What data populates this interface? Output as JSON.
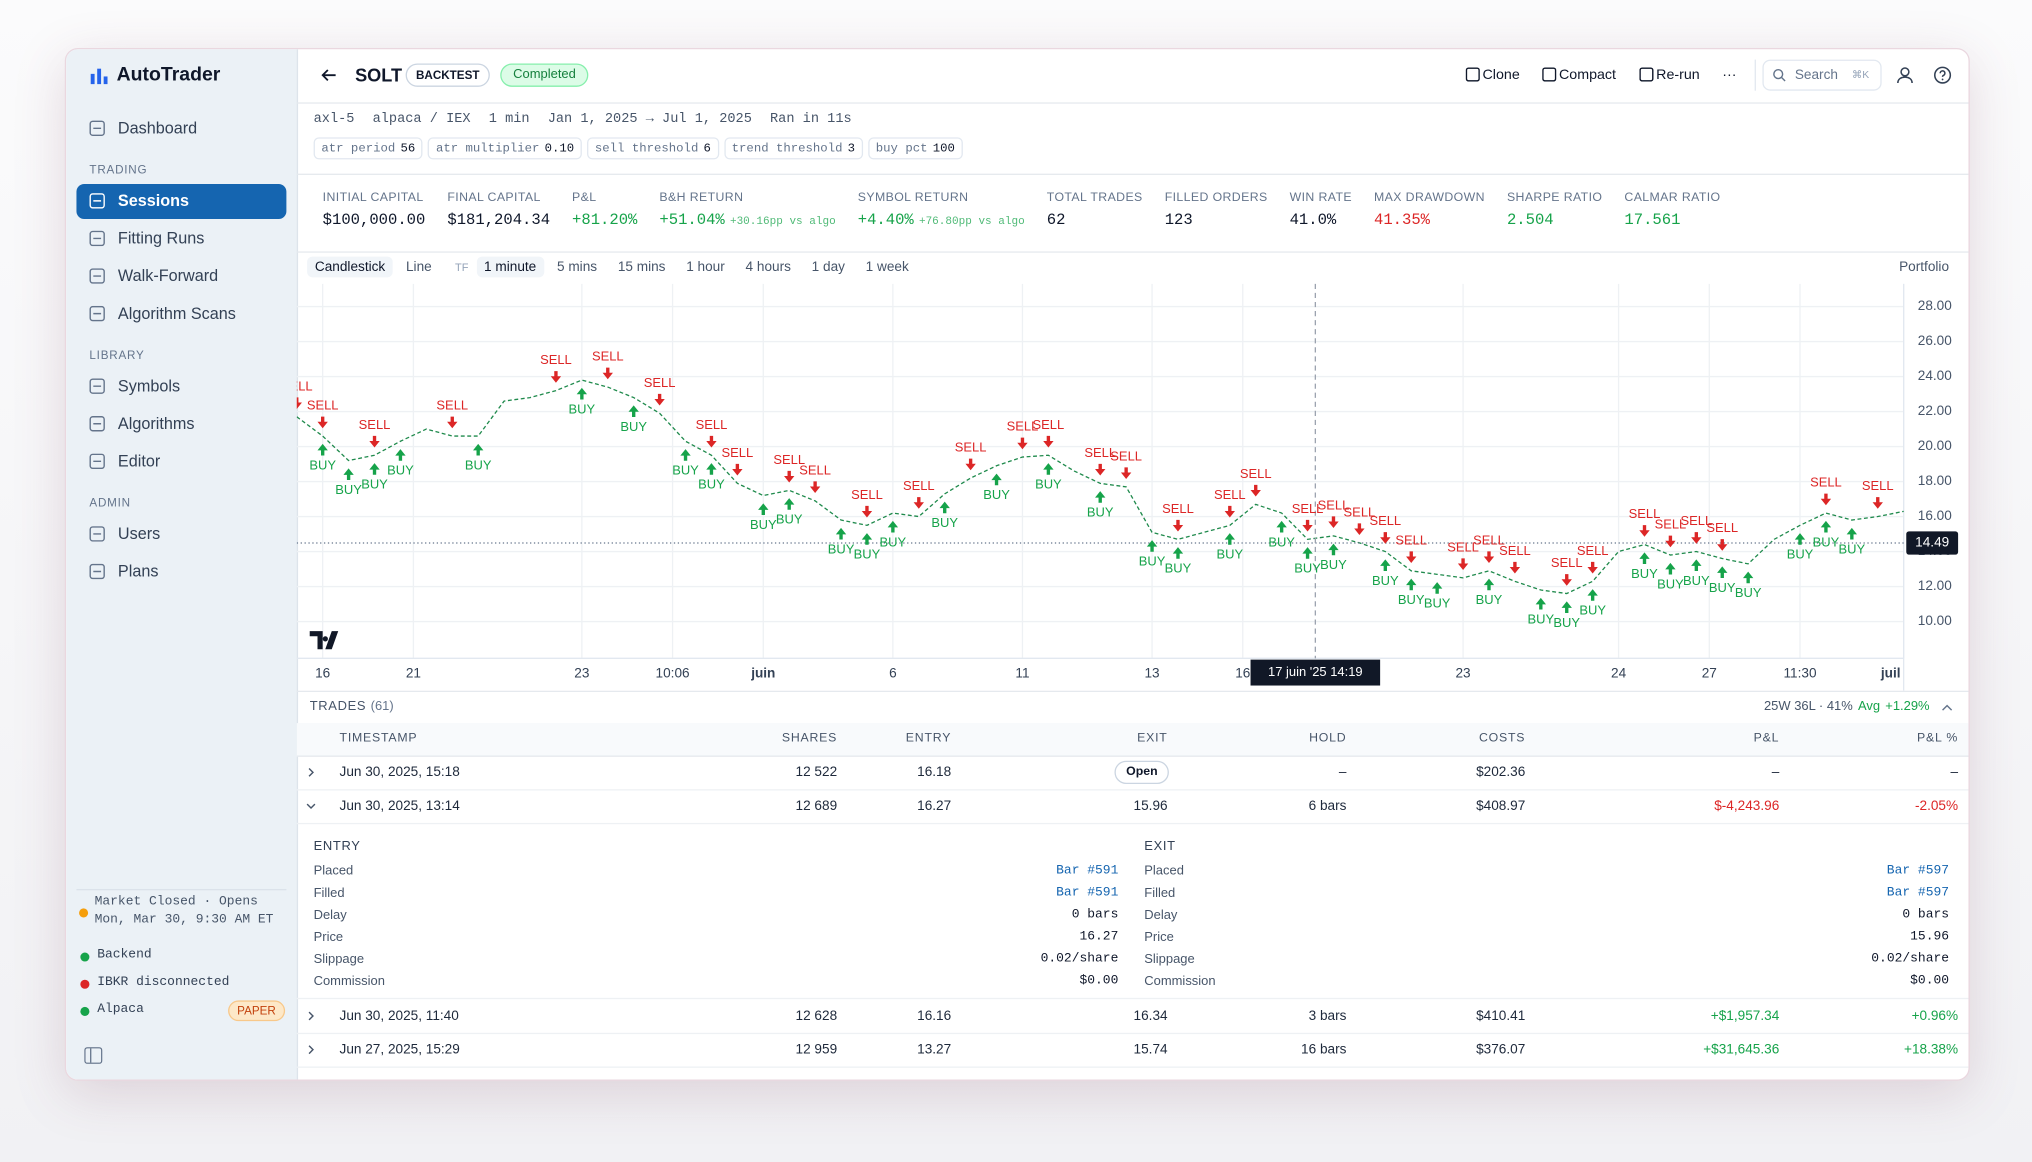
{
  "sidebar": {
    "brand": "AutoTrader",
    "top": [
      {
        "label": "Dashboard"
      }
    ],
    "groups": [
      {
        "title": "TRADING",
        "items": [
          {
            "label": "Sessions",
            "active": true
          },
          {
            "label": "Fitting Runs"
          },
          {
            "label": "Walk-Forward"
          },
          {
            "label": "Algorithm Scans"
          }
        ]
      },
      {
        "title": "LIBRARY",
        "items": [
          {
            "label": "Symbols"
          },
          {
            "label": "Algorithms"
          },
          {
            "label": "Editor"
          }
        ]
      },
      {
        "title": "ADMIN",
        "items": [
          {
            "label": "Users"
          },
          {
            "label": "Plans"
          }
        ]
      }
    ],
    "market": [
      "Market Closed · Opens",
      "Mon, Mar 30, 9:30 AM ET"
    ],
    "market_color": "#f59e0b",
    "status": [
      {
        "label": "Backend",
        "color": "#16a34a"
      },
      {
        "label": "IBKR disconnected",
        "color": "#dc2626"
      },
      {
        "label": "Alpaca",
        "color": "#16a34a",
        "badge": "PAPER"
      }
    ]
  },
  "header": {
    "symbol": "SOLT",
    "mode": "BACKTEST",
    "status": "Completed",
    "actions": [
      "Clone",
      "Compact",
      "Re-run",
      "···"
    ],
    "search": "Search",
    "shortcut": "⌘K"
  },
  "run_info": [
    "axl-5",
    "alpaca / IEX",
    "1 min",
    "Jan 1, 2025 → Jul 1, 2025",
    "Ran in 11s"
  ],
  "params": [
    {
      "name": "atr period",
      "value": "56"
    },
    {
      "name": "atr multiplier",
      "value": "0.10"
    },
    {
      "name": "sell threshold",
      "value": "6"
    },
    {
      "name": "trend threshold",
      "value": "3"
    },
    {
      "name": "buy pct",
      "value": "100"
    }
  ],
  "metrics": [
    {
      "label": "INITIAL CAPITAL",
      "value": "$100,000.00"
    },
    {
      "label": "FINAL CAPITAL",
      "value": "$181,204.34"
    },
    {
      "label": "P&L",
      "value": "+81.20%",
      "color": "#16a34a"
    },
    {
      "label": "B&H RETURN",
      "value": "+51.04%",
      "note": "+30.16pp vs algo",
      "color": "#16a34a"
    },
    {
      "label": "SYMBOL RETURN",
      "value": "+4.40%",
      "note": "+76.80pp vs algo",
      "color": "#16a34a"
    },
    {
      "label": "TOTAL TRADES",
      "value": "62"
    },
    {
      "label": "FILLED ORDERS",
      "value": "123"
    },
    {
      "label": "WIN RATE",
      "value": "41.0%"
    },
    {
      "label": "MAX DRAWDOWN",
      "value": "41.35%",
      "color": "#dc2626"
    },
    {
      "label": "SHARPE RATIO",
      "value": "2.504",
      "color": "#16a34a"
    },
    {
      "label": "CALMAR RATIO",
      "value": "17.561",
      "color": "#16a34a"
    }
  ],
  "toolbar": {
    "styles": [
      {
        "label": "Candlestick",
        "selected": true
      },
      {
        "label": "Line"
      }
    ],
    "tf_label": "TF",
    "timeframes": [
      {
        "label": "1 minute",
        "selected": true
      },
      {
        "label": "5 mins"
      },
      {
        "label": "15 mins"
      },
      {
        "label": "1 hour"
      },
      {
        "label": "4 hours"
      },
      {
        "label": "1 day"
      },
      {
        "label": "1 week"
      }
    ],
    "portfolio": "Portfolio"
  },
  "chart": {
    "type": "line",
    "color": "#1f8a4c",
    "values": [
      21.7,
      20.6,
      19.2,
      19.5,
      20.3,
      21.0,
      20.6,
      20.6,
      22.6,
      22.8,
      23.2,
      23.8,
      23.4,
      22.8,
      21.9,
      20.3,
      19.5,
      17.9,
      17.2,
      17.5,
      16.9,
      15.8,
      15.5,
      16.2,
      16.0,
      17.3,
      18.2,
      18.9,
      19.4,
      19.5,
      18.6,
      17.9,
      17.7,
      15.1,
      14.7,
      15.1,
      15.5,
      16.7,
      16.2,
      14.7,
      14.9,
      14.5,
      14.0,
      12.9,
      12.7,
      12.5,
      12.9,
      12.3,
      11.8,
      11.6,
      12.3,
      14.0,
      14.4,
      13.8,
      14.0,
      13.6,
      13.3,
      14.7,
      15.5,
      16.2,
      15.8,
      16.0,
      16.3
    ],
    "xlim": [
      0,
      62
    ],
    "ylim": [
      7.9,
      29.3
    ],
    "yticks": [
      {
        "value": 10,
        "label": "10.00"
      },
      {
        "value": 12,
        "label": "12.00"
      },
      {
        "value": 14,
        "label": "14.00"
      },
      {
        "value": 16,
        "label": "16.00"
      },
      {
        "value": 18,
        "label": "18.00"
      },
      {
        "value": 20,
        "label": "20.00"
      },
      {
        "value": 22,
        "label": "22.00"
      },
      {
        "value": 24,
        "label": "24.00"
      },
      {
        "value": 26,
        "label": "26.00"
      },
      {
        "value": 28,
        "label": "28.00"
      }
    ],
    "xticks": [
      {
        "value": 1,
        "label": "16"
      },
      {
        "value": 4.5,
        "label": "21"
      },
      {
        "value": 11,
        "label": "23"
      },
      {
        "value": 14.5,
        "label": "10:06"
      },
      {
        "value": 18,
        "label": "juin",
        "bold": true
      },
      {
        "value": 23,
        "label": "6"
      },
      {
        "value": 28,
        "label": "11"
      },
      {
        "value": 33,
        "label": "13"
      },
      {
        "value": 36.5,
        "label": "16"
      },
      {
        "value": 45,
        "label": "23"
      },
      {
        "value": 51,
        "label": "24"
      },
      {
        "value": 54.5,
        "label": "27"
      },
      {
        "value": 58,
        "label": "11:30"
      },
      {
        "value": 62,
        "label": "juil",
        "bold": true
      }
    ],
    "grid": true,
    "last_price": {
      "value": 14.49,
      "label": "14.49"
    },
    "crosshair": {
      "bar": 39.3,
      "label": "17 juin '25  14:19"
    },
    "marker_groups": [
      {
        "label": "SELL",
        "color": "#dc2626",
        "direction": "down",
        "bars": [
          0,
          1,
          3,
          6,
          10,
          12,
          14,
          16,
          17,
          19,
          20,
          22,
          24,
          26,
          28,
          29,
          31,
          32,
          34,
          36,
          37,
          39,
          40,
          41,
          42,
          43,
          45,
          46,
          47,
          49,
          50,
          52,
          53,
          54,
          55,
          59,
          61
        ]
      },
      {
        "label": "BUY",
        "color": "#16a34a",
        "direction": "up",
        "bars": [
          1,
          2,
          3,
          4,
          7,
          11,
          13,
          15,
          16,
          18,
          19,
          21,
          22,
          23,
          25,
          27,
          29,
          31,
          33,
          34,
          36,
          38,
          39,
          40,
          42,
          43,
          44,
          46,
          48,
          49,
          50,
          52,
          53,
          54,
          55,
          56,
          58,
          59,
          60
        ]
      }
    ]
  },
  "trades": {
    "title": "TRADES",
    "count": "(61)",
    "summary": "25W 36L · 41%",
    "avg_label": "Avg",
    "avg": "+1.29%",
    "columns": [
      "TIMESTAMP",
      "SHARES",
      "ENTRY",
      "EXIT",
      "HOLD",
      "COSTS",
      "P&L",
      "P&L %"
    ],
    "rows": [
      {
        "cells": [
          "Jun 30, 2025, 15:18",
          "12 522",
          "16.18",
          "Open",
          "–",
          "$202.36",
          "–",
          "–"
        ],
        "exit_badge": true
      },
      {
        "cells": [
          "Jun 30, 2025, 13:14",
          "12 689",
          "16.27",
          "15.96",
          "6 bars",
          "$408.97",
          "$-4,243.96",
          "-2.05%"
        ],
        "expanded": true,
        "detail": [
          {
            "title": "ENTRY",
            "fields": [
              [
                "Placed",
                "Bar #591"
              ],
              [
                "Filled",
                "Bar #591"
              ],
              [
                "Delay",
                "0 bars"
              ],
              [
                "Price",
                "16.27"
              ],
              [
                "Slippage",
                "0.02/share"
              ],
              [
                "Commission",
                "$0.00"
              ]
            ]
          },
          {
            "title": "EXIT",
            "fields": [
              [
                "Placed",
                "Bar #597"
              ],
              [
                "Filled",
                "Bar #597"
              ],
              [
                "Delay",
                "0 bars"
              ],
              [
                "Price",
                "15.96"
              ],
              [
                "Slippage",
                "0.02/share"
              ],
              [
                "Commission",
                "$0.00"
              ]
            ]
          }
        ]
      },
      {
        "cells": [
          "Jun 30, 2025, 11:40",
          "12 628",
          "16.16",
          "16.34",
          "3 bars",
          "$410.41",
          "+$1,957.34",
          "+0.96%"
        ]
      },
      {
        "cells": [
          "Jun 27, 2025, 15:29",
          "12 959",
          "13.27",
          "15.74",
          "16 bars",
          "$376.07",
          "+$31,645.36",
          "+18.38%"
        ]
      }
    ]
  }
}
